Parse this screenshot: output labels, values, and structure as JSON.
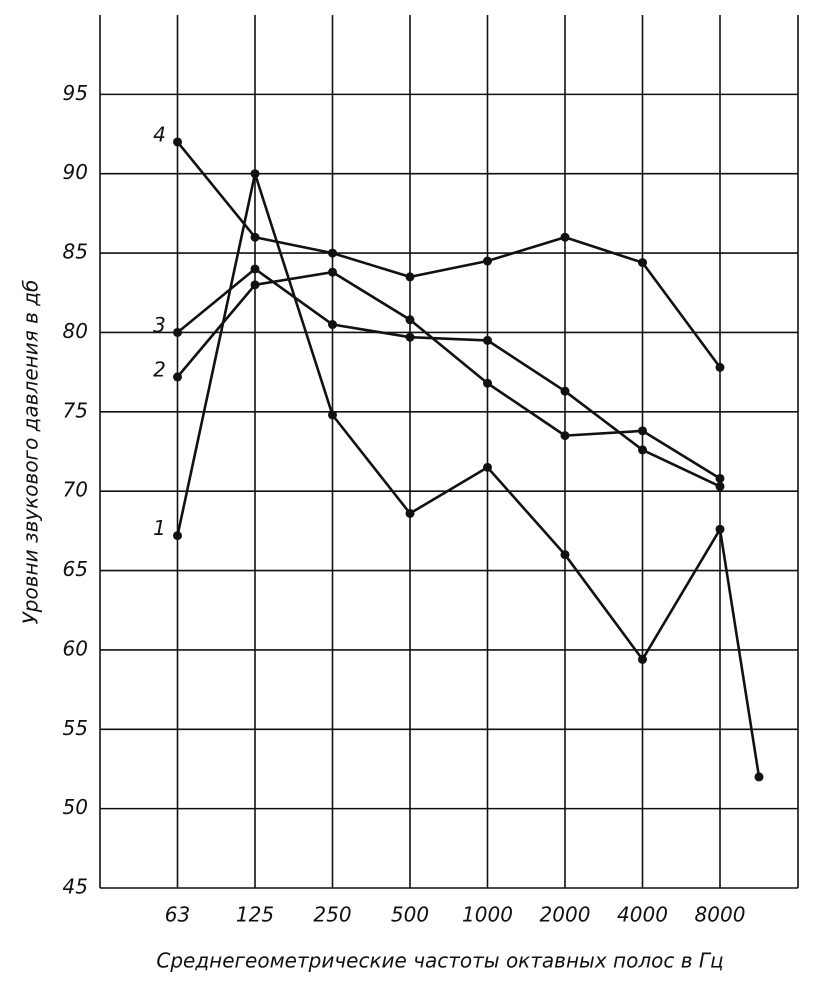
{
  "chart_data": {
    "type": "line",
    "y_label": "Уровни звукового давления в дб",
    "x_label": "Среднегеометрические частоты октавных полос в Гц",
    "categories": [
      "63",
      "125",
      "250",
      "500",
      "1000",
      "2000",
      "4000",
      "8000",
      null
    ],
    "ylim": [
      45,
      100
    ],
    "yticks": [
      45,
      50,
      55,
      60,
      65,
      70,
      75,
      80,
      85,
      90,
      95
    ],
    "grid": true,
    "series": [
      {
        "name": "1",
        "color": "#111111",
        "values": [
          67.2,
          90,
          74.8,
          68.6,
          71.5,
          66,
          59.4,
          67.6,
          52
        ]
      },
      {
        "name": "2",
        "color": "#111111",
        "values": [
          77.2,
          83,
          83.8,
          80.8,
          76.8,
          73.5,
          73.8,
          70.8,
          null
        ]
      },
      {
        "name": "3",
        "color": "#111111",
        "values": [
          80,
          84,
          80.5,
          79.7,
          79.5,
          76.3,
          72.6,
          70.3,
          null
        ]
      },
      {
        "name": "4",
        "color": "#111111",
        "values": [
          92,
          86,
          85,
          83.5,
          84.5,
          86,
          84.4,
          77.8,
          null
        ]
      }
    ]
  }
}
